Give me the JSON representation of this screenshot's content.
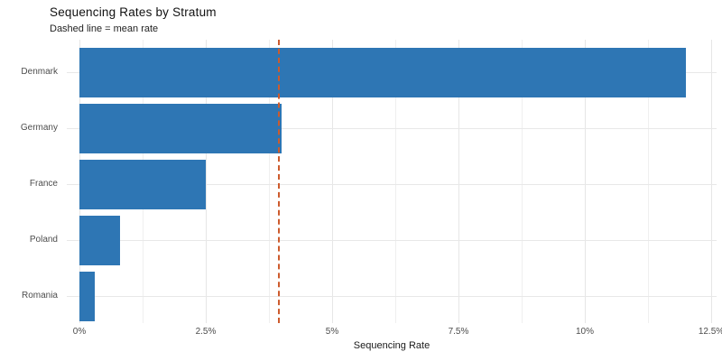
{
  "chart_data": {
    "type": "bar",
    "orientation": "horizontal",
    "title": "Sequencing Rates by Stratum",
    "subtitle": "Dashed line = mean rate",
    "xlabel": "Sequencing Rate",
    "categories": [
      "Denmark",
      "Germany",
      "France",
      "Poland",
      "Romania"
    ],
    "values_pct": [
      12.0,
      4.0,
      2.5,
      0.8,
      0.3
    ],
    "mean_pct": 3.92,
    "x_tick_values": [
      0,
      2.5,
      5,
      7.5,
      10,
      12.5
    ],
    "x_tick_labels": [
      "0%",
      "2.5%",
      "5%",
      "7.5%",
      "10%",
      "12.5%"
    ],
    "xlim": [
      0,
      12.85
    ],
    "grid": {
      "vertical": "major and minor",
      "horizontal": "category centers"
    },
    "legend": "none",
    "colors": {
      "bar": "#2e76b4",
      "mean_line": "#cd5b2d",
      "grid_major": "#e6e6e6",
      "grid_minor": "#efefef",
      "axis_text": "#4d4d4d",
      "title_text": "#111111",
      "background": "#ffffff"
    }
  }
}
